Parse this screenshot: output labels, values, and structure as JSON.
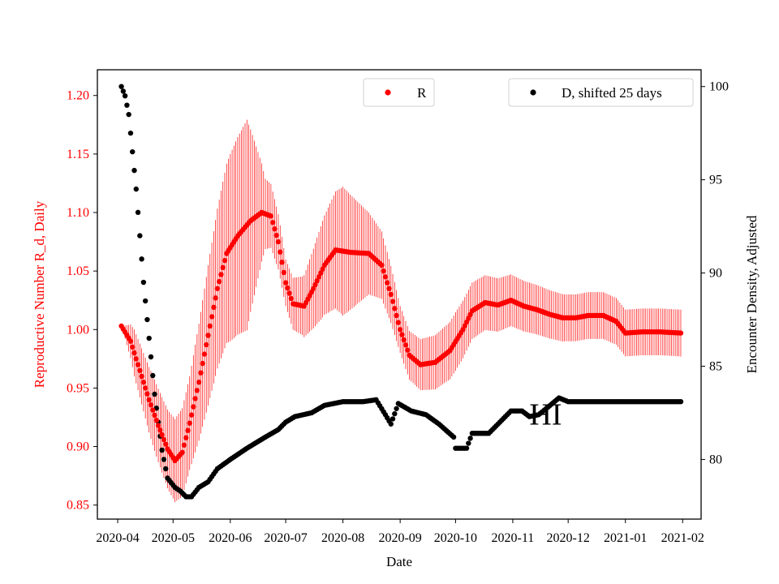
{
  "chart_data": {
    "type": "scatter",
    "xlabel": "Date",
    "ylabel_left": "Reproductive Number R_d, Daily",
    "ylabel_right": "Encounter Density, Adjusted",
    "x_ticks": [
      "2020-04",
      "2020-05",
      "2020-06",
      "2020-07",
      "2020-08",
      "2020-09",
      "2020-10",
      "2020-11",
      "2020-12",
      "2021-01",
      "2021-02"
    ],
    "y_left_ticks": [
      "0.85",
      "0.90",
      "0.95",
      "1.00",
      "1.05",
      "1.10",
      "1.15",
      "1.20"
    ],
    "y_right_ticks": [
      "80",
      "85",
      "90",
      "95",
      "100"
    ],
    "xlim": [
      "2020-03-21",
      "2021-02-11"
    ],
    "ylim_left": [
      0.838,
      1.222
    ],
    "ylim_right": [
      76.8,
      100.9
    ],
    "grid": false,
    "annotation": "HI",
    "annotation_x": "2020-11-10",
    "annotation_y_left": 0.948,
    "colors": {
      "R": "#ff0000",
      "D": "#000000"
    },
    "series": [
      {
        "name": "R",
        "axis": "left",
        "color": "#ff0000",
        "knots": [
          [
            "2020-04-03",
            1.003
          ],
          [
            "2020-04-08",
            0.99
          ],
          [
            "2020-04-13",
            0.965
          ],
          [
            "2020-04-18",
            0.94
          ],
          [
            "2020-04-23",
            0.918
          ],
          [
            "2020-04-28",
            0.898
          ],
          [
            "2020-05-02",
            0.888
          ],
          [
            "2020-05-06",
            0.895
          ],
          [
            "2020-05-10",
            0.92
          ],
          [
            "2020-05-15",
            0.955
          ],
          [
            "2020-05-20",
            0.995
          ],
          [
            "2020-05-25",
            1.035
          ],
          [
            "2020-05-30",
            1.065
          ],
          [
            "2020-06-05",
            1.08
          ],
          [
            "2020-06-12",
            1.093
          ],
          [
            "2020-06-18",
            1.1
          ],
          [
            "2020-06-23",
            1.097
          ],
          [
            "2020-06-27",
            1.075
          ],
          [
            "2020-07-01",
            1.04
          ],
          [
            "2020-07-05",
            1.022
          ],
          [
            "2020-07-11",
            1.02
          ],
          [
            "2020-07-16",
            1.035
          ],
          [
            "2020-07-22",
            1.055
          ],
          [
            "2020-07-28",
            1.068
          ],
          [
            "2020-08-05",
            1.066
          ],
          [
            "2020-08-15",
            1.065
          ],
          [
            "2020-08-22",
            1.055
          ],
          [
            "2020-08-27",
            1.03
          ],
          [
            "2020-09-01",
            1.0
          ],
          [
            "2020-09-06",
            0.978
          ],
          [
            "2020-09-12",
            0.97
          ],
          [
            "2020-09-20",
            0.972
          ],
          [
            "2020-09-28",
            0.982
          ],
          [
            "2020-10-05",
            1.0
          ],
          [
            "2020-10-10",
            1.016
          ],
          [
            "2020-10-17",
            1.023
          ],
          [
            "2020-10-24",
            1.021
          ],
          [
            "2020-10-31",
            1.025
          ],
          [
            "2020-11-07",
            1.02
          ],
          [
            "2020-11-14",
            1.017
          ],
          [
            "2020-11-21",
            1.013
          ],
          [
            "2020-11-28",
            1.01
          ],
          [
            "2020-12-05",
            1.01
          ],
          [
            "2020-12-12",
            1.012
          ],
          [
            "2020-12-20",
            1.012
          ],
          [
            "2020-12-27",
            1.007
          ],
          [
            "2021-01-01",
            0.997
          ],
          [
            "2021-01-10",
            0.998
          ],
          [
            "2021-01-20",
            0.998
          ],
          [
            "2021-01-31",
            0.997
          ]
        ],
        "error_halfwidth_knots": [
          [
            "2020-04-03",
            0.0
          ],
          [
            "2020-04-10",
            0.02
          ],
          [
            "2020-04-20",
            0.03
          ],
          [
            "2020-05-01",
            0.035
          ],
          [
            "2020-05-10",
            0.04
          ],
          [
            "2020-05-20",
            0.06
          ],
          [
            "2020-06-01",
            0.08
          ],
          [
            "2020-06-10",
            0.09
          ],
          [
            "2020-06-20",
            0.03
          ],
          [
            "2020-07-01",
            0.02
          ],
          [
            "2020-07-10",
            0.025
          ],
          [
            "2020-07-20",
            0.04
          ],
          [
            "2020-08-01",
            0.055
          ],
          [
            "2020-08-15",
            0.035
          ],
          [
            "2020-09-01",
            0.02
          ],
          [
            "2020-10-01",
            0.025
          ],
          [
            "2020-11-01",
            0.022
          ],
          [
            "2020-12-01",
            0.02
          ],
          [
            "2021-01-31",
            0.02
          ]
        ]
      },
      {
        "name": "D, shifted 25 days",
        "axis": "right",
        "color": "#000000",
        "knots": [
          [
            "2020-04-03",
            100.0
          ],
          [
            "2020-04-05",
            99.5
          ],
          [
            "2020-04-07",
            98.5
          ],
          [
            "2020-04-09",
            96.5
          ],
          [
            "2020-04-11",
            94.5
          ],
          [
            "2020-04-13",
            92.0
          ],
          [
            "2020-04-15",
            89.5
          ],
          [
            "2020-04-18",
            86.5
          ],
          [
            "2020-04-21",
            83.5
          ],
          [
            "2020-04-25",
            80.5
          ],
          [
            "2020-04-28",
            79.0
          ],
          [
            "2020-05-02",
            78.5
          ],
          [
            "2020-05-05",
            78.3
          ],
          [
            "2020-05-08",
            78.0
          ],
          [
            "2020-05-11",
            78.0
          ],
          [
            "2020-05-15",
            78.5
          ],
          [
            "2020-05-20",
            78.8
          ],
          [
            "2020-05-25",
            79.5
          ],
          [
            "2020-06-01",
            80.0
          ],
          [
            "2020-06-10",
            80.6
          ],
          [
            "2020-06-20",
            81.2
          ],
          [
            "2020-06-27",
            81.6
          ],
          [
            "2020-07-01",
            82.0
          ],
          [
            "2020-07-06",
            82.3
          ],
          [
            "2020-07-15",
            82.5
          ],
          [
            "2020-07-22",
            82.9
          ],
          [
            "2020-08-01",
            83.1
          ],
          [
            "2020-08-12",
            83.1
          ],
          [
            "2020-08-19",
            83.2
          ],
          [
            "2020-08-24",
            82.4
          ],
          [
            "2020-08-27",
            81.9
          ],
          [
            "2020-08-31",
            83.0
          ],
          [
            "2020-09-07",
            82.6
          ],
          [
            "2020-09-15",
            82.4
          ],
          [
            "2020-09-22",
            81.9
          ],
          [
            "2020-09-30",
            81.2
          ],
          [
            "2020-10-01",
            80.6
          ],
          [
            "2020-10-07",
            80.6
          ],
          [
            "2020-10-10",
            81.4
          ],
          [
            "2020-10-19",
            81.4
          ],
          [
            "2020-10-25",
            82.0
          ],
          [
            "2020-10-31",
            82.6
          ],
          [
            "2020-11-06",
            82.6
          ],
          [
            "2020-11-10",
            82.3
          ],
          [
            "2020-11-15",
            82.4
          ],
          [
            "2020-11-20",
            82.8
          ],
          [
            "2020-11-26",
            83.3
          ],
          [
            "2020-12-01",
            83.1
          ],
          [
            "2021-01-31",
            83.1
          ]
        ]
      }
    ],
    "legend": [
      {
        "label": "R",
        "color": "#ff0000",
        "placement": "top-center"
      },
      {
        "label": "D, shifted 25 days",
        "color": "#000000",
        "placement": "top-right"
      }
    ]
  }
}
